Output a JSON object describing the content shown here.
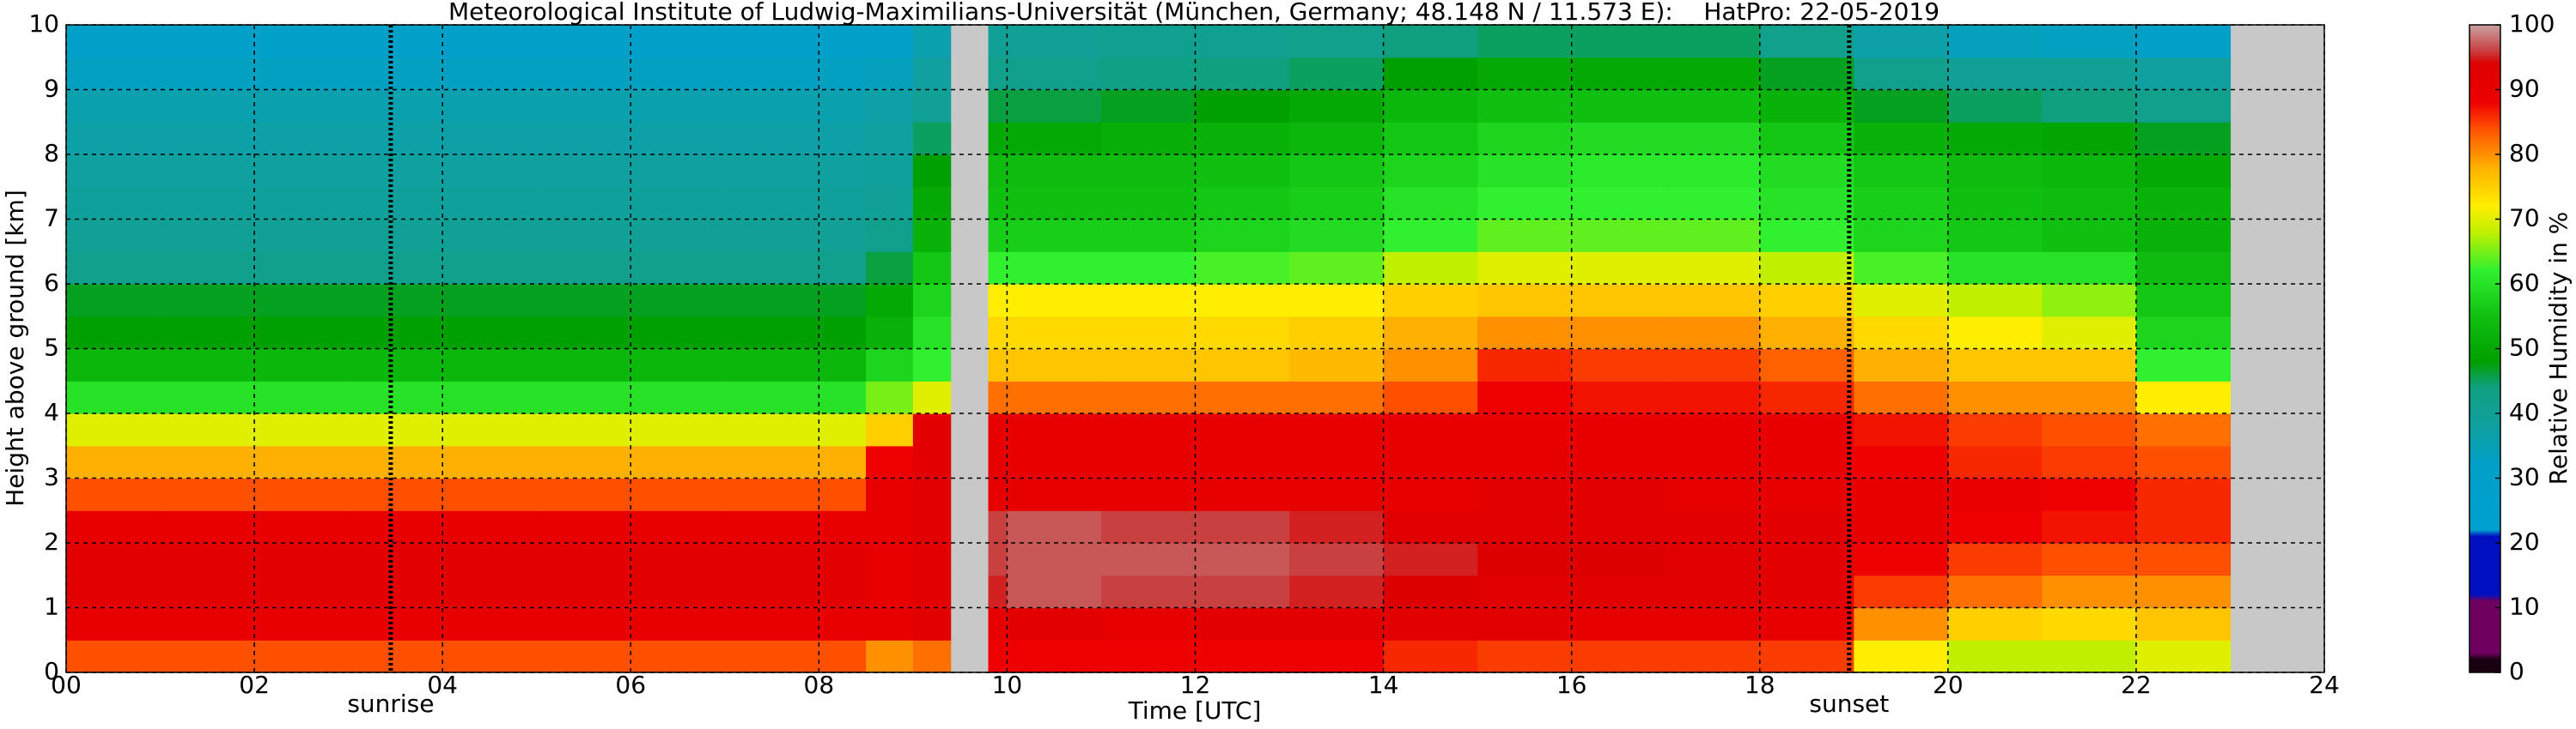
{
  "chart_data": {
    "type": "heatmap",
    "title": "Meteorological Institute of Ludwig-Maximilians-Universität (München, Germany; 48.148 N / 11.573 E):    HatPro: 22-05-2019",
    "xlabel": "Time [UTC]",
    "ylabel": "Height above ground [km]",
    "colorbar_label": "Relative Humidity in %",
    "xlim": [
      0,
      24
    ],
    "xticks": [
      {
        "value": 0,
        "label": "00"
      },
      {
        "value": 2,
        "label": "02"
      },
      {
        "value": 4,
        "label": "04"
      },
      {
        "value": 6,
        "label": "06"
      },
      {
        "value": 8,
        "label": "08"
      },
      10,
      12,
      14,
      16,
      18,
      20,
      22,
      24
    ],
    "ylim": [
      0,
      10
    ],
    "yticks": [
      0,
      1,
      2,
      3,
      4,
      5,
      6,
      7,
      8,
      9,
      10
    ],
    "clim": [
      0,
      100
    ],
    "cticks": [
      0,
      10,
      20,
      30,
      40,
      50,
      60,
      70,
      80,
      90,
      100
    ],
    "grid": true,
    "x_bins": [
      0,
      1,
      2,
      3,
      4,
      5,
      6,
      7,
      8,
      8.5,
      9,
      9.4,
      9.8,
      10,
      11,
      12,
      13,
      14,
      15,
      16,
      17,
      18,
      19,
      20,
      21,
      22,
      23,
      24
    ],
    "y_bins": [
      0,
      0.5,
      1,
      1.5,
      2,
      2.5,
      3,
      3.5,
      4,
      4.5,
      5,
      5.5,
      6,
      6.5,
      7,
      7.5,
      8,
      8.5,
      9,
      9.5,
      10
    ],
    "z": [
      [
        84,
        84,
        84,
        84,
        84,
        84,
        84,
        84,
        84,
        80,
        82,
        null,
        88,
        88,
        88,
        88,
        88,
        86,
        85,
        85,
        85,
        85,
        72,
        68,
        68,
        70,
        null
      ],
      [
        90,
        90,
        90,
        90,
        90,
        90,
        90,
        90,
        90,
        90,
        92,
        null,
        91,
        92,
        91,
        92,
        92,
        92,
        92,
        91,
        91,
        90,
        80,
        75,
        74,
        76,
        null
      ],
      [
        92,
        92,
        92,
        92,
        92,
        92,
        92,
        92,
        92,
        90,
        92,
        null,
        95,
        97,
        96,
        96,
        95,
        94,
        93,
        93,
        93,
        92,
        85,
        82,
        80,
        80,
        null
      ],
      [
        92,
        92,
        92,
        92,
        92,
        92,
        92,
        92,
        92,
        90,
        92,
        null,
        96,
        97,
        97,
        97,
        96,
        95,
        94,
        94,
        93,
        92,
        88,
        85,
        84,
        84,
        null
      ],
      [
        90,
        90,
        90,
        90,
        90,
        90,
        90,
        90,
        90,
        90,
        92,
        null,
        96,
        97,
        96,
        96,
        95,
        93,
        93,
        93,
        92,
        92,
        90,
        88,
        87,
        86,
        null
      ],
      [
        84,
        84,
        84,
        84,
        84,
        84,
        84,
        84,
        84,
        90,
        92,
        null,
        91,
        91,
        91,
        91,
        91,
        91,
        92,
        92,
        91,
        91,
        90,
        89,
        88,
        86,
        null
      ],
      [
        78,
        78,
        78,
        78,
        78,
        78,
        78,
        78,
        78,
        88,
        92,
        null,
        91,
        90,
        90,
        90,
        90,
        90,
        91,
        91,
        91,
        90,
        88,
        86,
        85,
        84,
        null
      ],
      [
        70,
        70,
        70,
        70,
        70,
        70,
        70,
        70,
        70,
        75,
        92,
        null,
        90,
        90,
        90,
        90,
        90,
        90,
        90,
        90,
        90,
        90,
        87,
        85,
        84,
        82,
        null
      ],
      [
        60,
        60,
        60,
        60,
        60,
        60,
        60,
        60,
        60,
        65,
        70,
        null,
        82,
        82,
        82,
        82,
        82,
        84,
        88,
        87,
        87,
        86,
        82,
        80,
        80,
        72,
        null
      ],
      [
        53,
        53,
        53,
        53,
        53,
        53,
        53,
        53,
        53,
        58,
        62,
        null,
        76,
        76,
        76,
        76,
        77,
        80,
        86,
        85,
        85,
        83,
        78,
        76,
        76,
        62,
        null
      ],
      [
        48,
        48,
        48,
        48,
        48,
        48,
        48,
        48,
        48,
        52,
        60,
        null,
        74,
        74,
        74,
        74,
        75,
        78,
        80,
        80,
        80,
        78,
        74,
        72,
        70,
        58,
        null
      ],
      [
        47,
        47,
        47,
        47,
        47,
        47,
        47,
        47,
        47,
        50,
        58,
        null,
        72,
        72,
        72,
        72,
        72,
        75,
        76,
        76,
        76,
        75,
        70,
        68,
        66,
        56,
        null
      ],
      [
        42,
        42,
        42,
        42,
        42,
        42,
        42,
        42,
        42,
        46,
        56,
        null,
        62,
        62,
        62,
        63,
        64,
        68,
        70,
        70,
        70,
        68,
        63,
        60,
        60,
        54,
        null
      ],
      [
        40,
        40,
        40,
        40,
        40,
        40,
        40,
        40,
        40,
        42,
        52,
        null,
        57,
        57,
        57,
        58,
        59,
        62,
        64,
        64,
        64,
        62,
        58,
        56,
        55,
        52,
        null
      ],
      [
        39,
        39,
        39,
        39,
        39,
        39,
        39,
        39,
        39,
        40,
        50,
        null,
        55,
        55,
        55,
        56,
        57,
        60,
        62,
        62,
        62,
        60,
        57,
        55,
        54,
        52,
        null
      ],
      [
        38,
        38,
        38,
        38,
        38,
        38,
        38,
        38,
        38,
        39,
        48,
        null,
        54,
        54,
        54,
        55,
        56,
        58,
        60,
        61,
        61,
        59,
        56,
        54,
        53,
        50,
        null
      ],
      [
        37,
        37,
        37,
        37,
        37,
        37,
        37,
        37,
        37,
        38,
        45,
        null,
        50,
        50,
        51,
        52,
        53,
        56,
        58,
        59,
        59,
        56,
        52,
        50,
        49,
        47,
        null
      ],
      [
        36,
        36,
        36,
        36,
        36,
        36,
        36,
        36,
        36,
        37,
        40,
        null,
        46,
        46,
        47,
        48,
        50,
        53,
        55,
        55,
        55,
        52,
        47,
        45,
        44,
        42,
        null
      ],
      [
        33,
        33,
        33,
        33,
        33,
        33,
        33,
        33,
        33,
        34,
        38,
        null,
        42,
        42,
        43,
        44,
        45,
        48,
        50,
        50,
        50,
        47,
        42,
        40,
        40,
        38,
        null
      ],
      [
        31,
        31,
        31,
        31,
        31,
        31,
        31,
        31,
        31,
        32,
        36,
        null,
        40,
        40,
        41,
        41,
        42,
        44,
        45,
        45,
        45,
        42,
        37,
        34,
        33,
        32,
        null
      ]
    ],
    "colorscale": [
      [
        0,
        "#1a0010"
      ],
      [
        2,
        "#1a0010"
      ],
      [
        3,
        "#700060"
      ],
      [
        11,
        "#700060"
      ],
      [
        12,
        "#0010c0"
      ],
      [
        21,
        "#0010c0"
      ],
      [
        22,
        "#00a0d0"
      ],
      [
        32,
        "#00a0c8"
      ],
      [
        38,
        "#10a0a0"
      ],
      [
        44,
        "#10a080"
      ],
      [
        48,
        "#00a000"
      ],
      [
        55,
        "#10c010"
      ],
      [
        62,
        "#30f030"
      ],
      [
        68,
        "#c0f000"
      ],
      [
        72,
        "#ffee00"
      ],
      [
        78,
        "#ffb000"
      ],
      [
        84,
        "#ff5000"
      ],
      [
        88,
        "#ee0000"
      ],
      [
        94,
        "#dd0000"
      ],
      [
        96,
        "#c84040"
      ],
      [
        100,
        "#c8a0a0"
      ]
    ],
    "missing_color": "#c8c8c8",
    "annotations": [
      {
        "x": 3.45,
        "label": "sunrise"
      },
      {
        "x": 18.95,
        "label": "sunset"
      }
    ]
  }
}
